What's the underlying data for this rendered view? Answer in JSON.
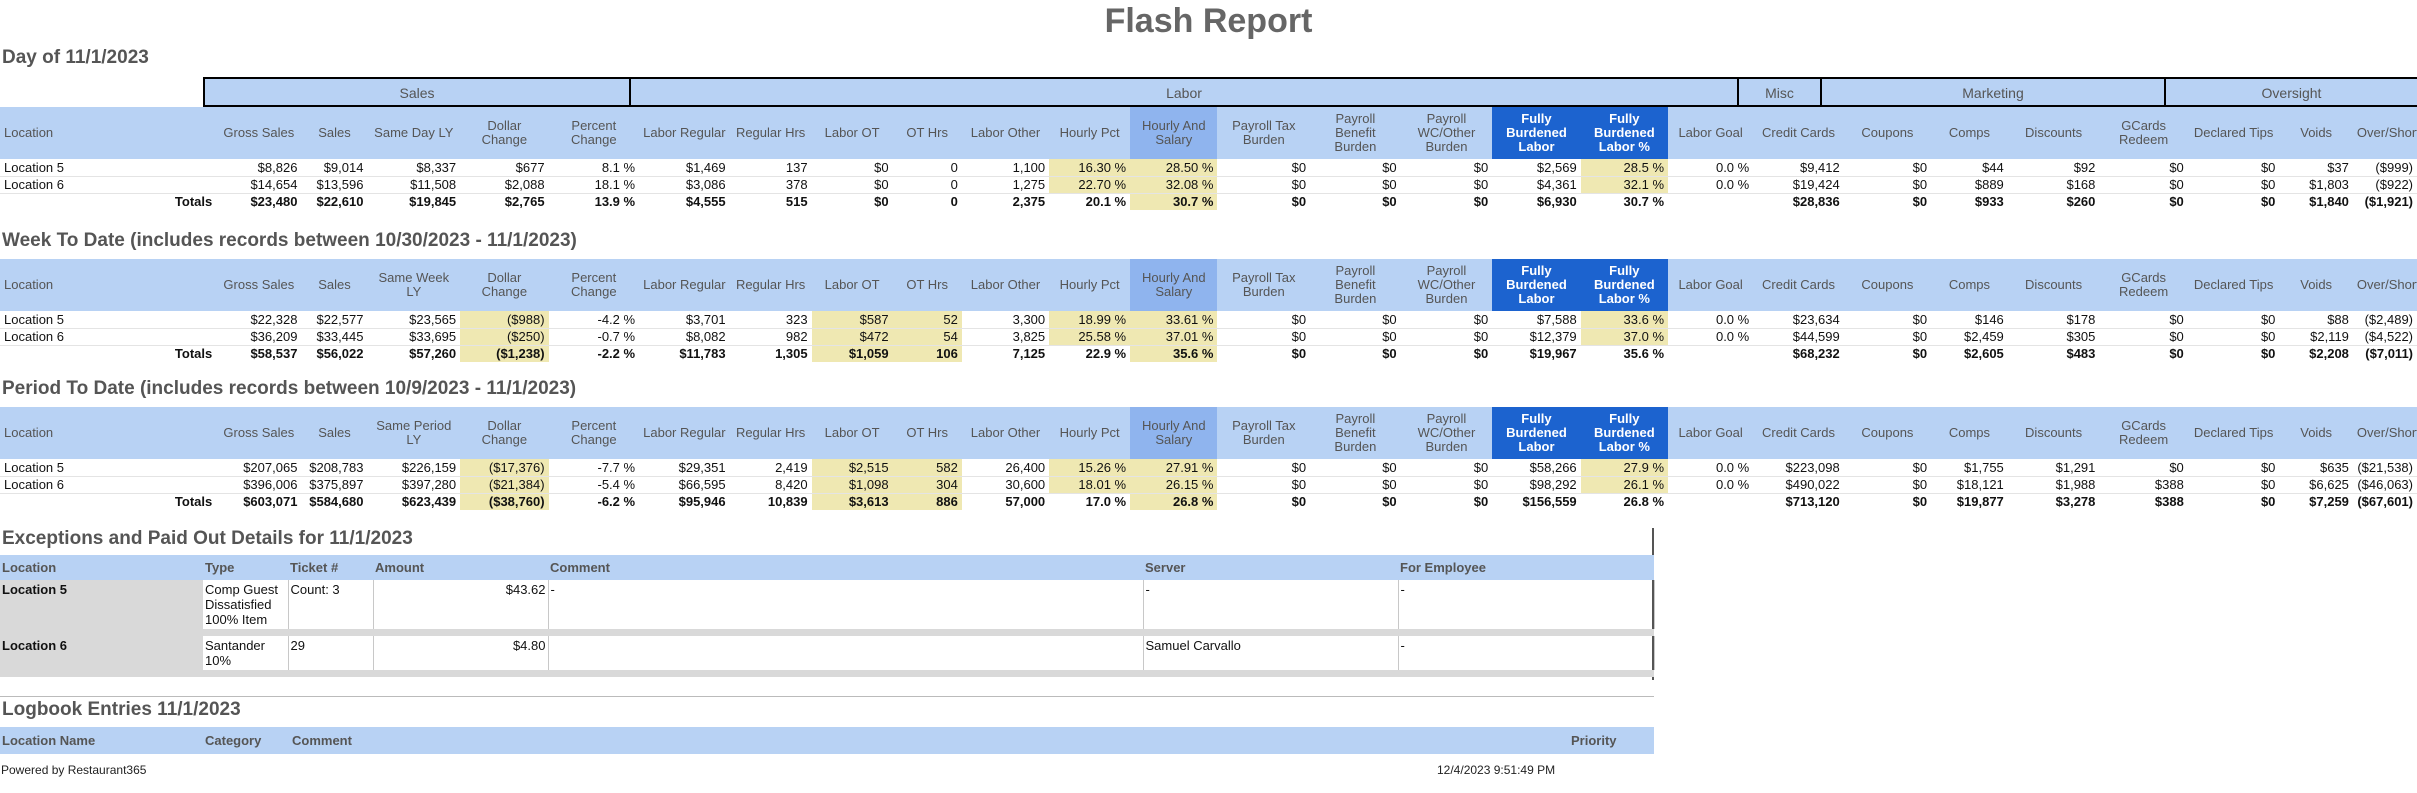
{
  "title": "Flash Report",
  "day_title": "Day of 11/1/2023",
  "week_title": "Week To Date (includes records between 10/30/2023 - 11/1/2023)",
  "period_title": "Period To Date (includes records between 10/9/2023 - 11/1/2023)",
  "groups": {
    "sales": "Sales",
    "labor": "Labor",
    "misc": "Misc",
    "marketing": "Marketing",
    "oversight": "Oversight"
  },
  "headers_common": {
    "location": "Location",
    "gross_sales": "Gross Sales",
    "sales": "Sales",
    "dollar_change": "Dollar Change",
    "percent_change": "Percent Change",
    "labor_regular": "Labor Regular",
    "regular_hrs": "Regular Hrs",
    "labor_ot": "Labor OT",
    "ot_hrs": "OT Hrs",
    "labor_other": "Labor Other",
    "hourly_pct": "Hourly Pct",
    "hourly_salary": "Hourly And Salary",
    "payroll_tax": "Payroll Tax Burden",
    "payroll_benefit": "Payroll Benefit Burden",
    "payroll_wc": "Payroll WC/Other Burden",
    "fbl": "Fully Burdened Labor",
    "fblp": "Fully Burdened Labor %",
    "labor_goal": "Labor Goal",
    "credit_cards": "Credit Cards",
    "coupons": "Coupons",
    "comps": "Comps",
    "discounts": "Discounts",
    "gcards": "GCards Redeem",
    "declared_tips": "Declared Tips",
    "voids": "Voids",
    "over_short": "Over/Short"
  },
  "last_year_headers": {
    "day": "Same Day LY",
    "week": "Same Week LY",
    "period": "Same Period LY"
  },
  "day": {
    "rows": [
      [
        "Location 5",
        "$8,826",
        "$9,014",
        "$8,337",
        "$677",
        "8.1 %",
        "$1,469",
        "137",
        "$0",
        "0",
        "1,100",
        "16.30 %",
        "28.50 %",
        "$0",
        "$0",
        "$0",
        "$2,569",
        "28.5 %",
        "0.0 %",
        "$9,412",
        "$0",
        "$44",
        "$92",
        "$0",
        "$0",
        "$37",
        "($999)"
      ],
      [
        "Location 6",
        "$14,654",
        "$13,596",
        "$11,508",
        "$2,088",
        "18.1 %",
        "$3,086",
        "378",
        "$0",
        "0",
        "1,275",
        "22.70 %",
        "32.08 %",
        "$0",
        "$0",
        "$0",
        "$4,361",
        "32.1 %",
        "0.0 %",
        "$19,424",
        "$0",
        "$889",
        "$168",
        "$0",
        "$0",
        "$1,803",
        "($922)"
      ]
    ],
    "totals": [
      "Totals",
      "$23,480",
      "$22,610",
      "$19,845",
      "$2,765",
      "13.9 %",
      "$4,555",
      "515",
      "$0",
      "0",
      "2,375",
      "20.1 %",
      "30.7 %",
      "$0",
      "$0",
      "$0",
      "$6,930",
      "30.7 %",
      "",
      "$28,836",
      "$0",
      "$933",
      "$260",
      "$0",
      "$0",
      "$1,840",
      "($1,921)"
    ]
  },
  "week": {
    "rows": [
      [
        "Location 5",
        "$22,328",
        "$22,577",
        "$23,565",
        "($988)",
        "-4.2 %",
        "$3,701",
        "323",
        "$587",
        "52",
        "3,300",
        "18.99 %",
        "33.61 %",
        "$0",
        "$0",
        "$0",
        "$7,588",
        "33.6 %",
        "0.0 %",
        "$23,634",
        "$0",
        "$146",
        "$178",
        "$0",
        "$0",
        "$88",
        "($2,489)"
      ],
      [
        "Location 6",
        "$36,209",
        "$33,445",
        "$33,695",
        "($250)",
        "-0.7 %",
        "$8,082",
        "982",
        "$472",
        "54",
        "3,825",
        "25.58 %",
        "37.01 %",
        "$0",
        "$0",
        "$0",
        "$12,379",
        "37.0 %",
        "0.0 %",
        "$44,599",
        "$0",
        "$2,459",
        "$305",
        "$0",
        "$0",
        "$2,119",
        "($4,522)"
      ]
    ],
    "totals": [
      "Totals",
      "$58,537",
      "$56,022",
      "$57,260",
      "($1,238)",
      "-2.2 %",
      "$11,783",
      "1,305",
      "$1,059",
      "106",
      "7,125",
      "22.9 %",
      "35.6 %",
      "$0",
      "$0",
      "$0",
      "$19,967",
      "35.6 %",
      "",
      "$68,232",
      "$0",
      "$2,605",
      "$483",
      "$0",
      "$0",
      "$2,208",
      "($7,011)"
    ]
  },
  "period": {
    "rows": [
      [
        "Location 5",
        "$207,065",
        "$208,783",
        "$226,159",
        "($17,376)",
        "-7.7 %",
        "$29,351",
        "2,419",
        "$2,515",
        "582",
        "26,400",
        "15.26 %",
        "27.91 %",
        "$0",
        "$0",
        "$0",
        "$58,266",
        "27.9 %",
        "0.0 %",
        "$223,098",
        "$0",
        "$1,755",
        "$1,291",
        "$0",
        "$0",
        "$635",
        "($21,538)"
      ],
      [
        "Location 6",
        "$396,006",
        "$375,897",
        "$397,280",
        "($21,384)",
        "-5.4 %",
        "$66,595",
        "8,420",
        "$1,098",
        "304",
        "30,600",
        "18.01 %",
        "26.15 %",
        "$0",
        "$0",
        "$0",
        "$98,292",
        "26.1 %",
        "0.0 %",
        "$490,022",
        "$0",
        "$18,121",
        "$1,988",
        "$388",
        "$0",
        "$6,625",
        "($46,063)"
      ]
    ],
    "totals": [
      "Totals",
      "$603,071",
      "$584,680",
      "$623,439",
      "($38,760)",
      "-6.2 %",
      "$95,946",
      "10,839",
      "$3,613",
      "886",
      "57,000",
      "17.0 %",
      "26.8 %",
      "$0",
      "$0",
      "$0",
      "$156,559",
      "26.8 %",
      "",
      "$713,120",
      "$0",
      "$19,877",
      "$3,278",
      "$388",
      "$0",
      "$7,259",
      "($67,601)"
    ]
  },
  "exceptions": {
    "title": "Exceptions and Paid Out Details for 11/1/2023",
    "headers": {
      "location": "Location",
      "type": "Type",
      "ticket": "Ticket #",
      "amount": "Amount",
      "comment": "Comment",
      "server": "Server",
      "for_employee": "For Employee"
    },
    "rows": [
      {
        "location": "Location 5",
        "type": "Comp Guest Dissatisfied 100% Item",
        "ticket": "Count: 3",
        "amount": "$43.62",
        "comment": "-",
        "server": "-",
        "for_employee": "-"
      },
      {
        "location": "Location 6",
        "type": "Santander 10%",
        "ticket": "29",
        "amount": "$4.80",
        "comment": "",
        "server": "Samuel Carvallo",
        "for_employee": "-"
      }
    ]
  },
  "logbook": {
    "title": "Logbook Entries 11/1/2023",
    "headers": {
      "location_name": "Location Name",
      "category": "Category",
      "comment": "Comment",
      "priority": "Priority"
    }
  },
  "footer": {
    "powered_by": "Powered by Restaurant365",
    "timestamp": "12/4/2023 9:51:49 PM"
  }
}
